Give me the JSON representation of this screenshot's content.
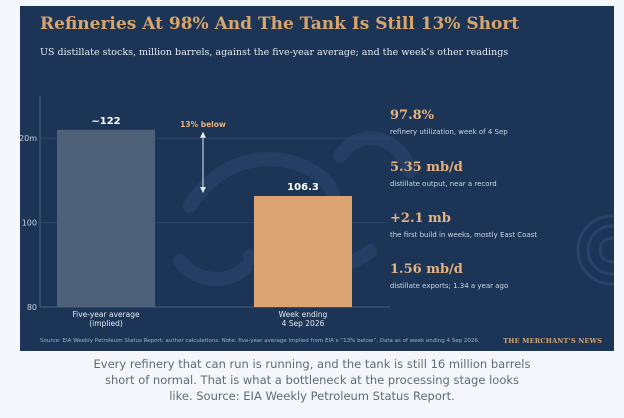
{
  "card": {
    "title": "Refineries At 98% And The Tank Is Still 13% Short",
    "subtitle": "US distillate stocks, million barrels, against the five-year average; and the week’s other readings",
    "source": "Source: EIA Weekly Petroleum Status Report; author calculations. Note: five-year average implied from EIA’s “13% below”. Data as of week ending 4 Sep 2026.",
    "brand": "THE MERCHANT’S NEWS"
  },
  "chart_data": {
    "type": "bar",
    "title": "Refineries At 98% And The Tank Is Still 13% Short",
    "subtitle": "US distillate stocks, million barrels, against the five-year average; and the week’s other readings",
    "categories": [
      "Five-year average (implied)",
      "Week ending 4 Sep 2026"
    ],
    "category_lines": [
      [
        "Five-year average",
        "(implied)"
      ],
      [
        "Week ending",
        "4 Sep 2026"
      ]
    ],
    "values": [
      122,
      106.3
    ],
    "data_labels": [
      "~122",
      "106.3"
    ],
    "ylim": [
      80,
      130
    ],
    "yticks": [
      80,
      100,
      120
    ],
    "ytick_labels": [
      "80",
      "100",
      "120m"
    ],
    "annotation": "13% below",
    "colors": {
      "bar_average": "#4f6079",
      "bar_week": "#dca473",
      "annotation": "#e6b27f"
    }
  },
  "readings": [
    {
      "value": "97.8%",
      "label": "refinery utilization, week of 4 Sep"
    },
    {
      "value": "5.35 mb/d",
      "label": "distillate output, near a record"
    },
    {
      "value": "+2.1 mb",
      "label": "the first build in weeks, mostly East Coast"
    },
    {
      "value": "1.56 mb/d",
      "label": "distillate exports; 1.34 a year ago"
    }
  ],
  "caption": "Every refinery that can run is running, and the tank is still 16 million barrels short of normal. That is what a bottleneck at the processing stage looks like. Source: EIA Weekly Petroleum Status Report."
}
